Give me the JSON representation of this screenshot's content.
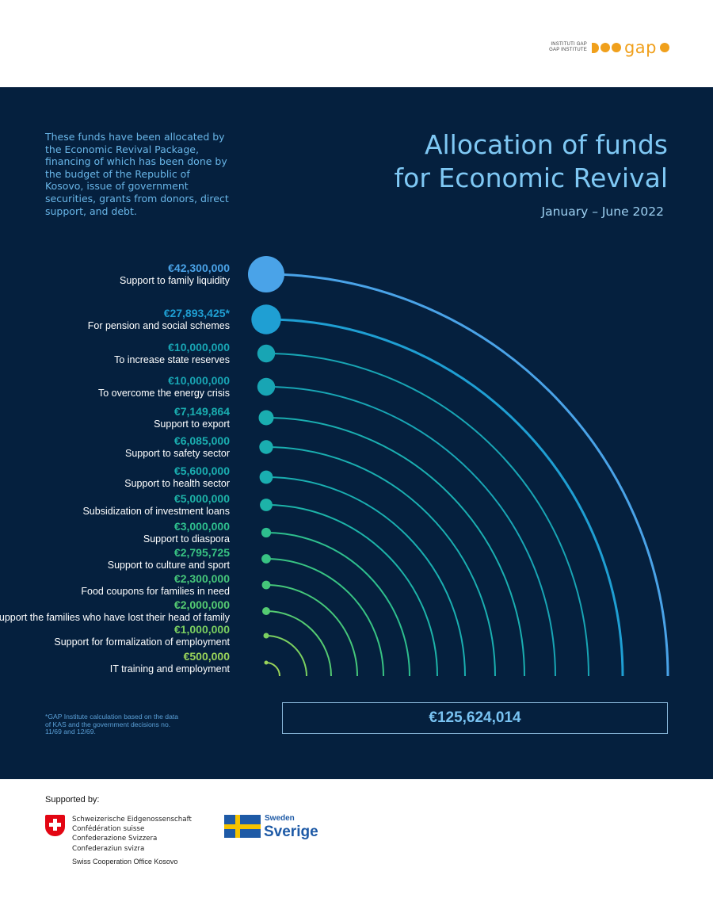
{
  "logo": {
    "line1": "INSTITUTI GAP",
    "line2": "GAP INSTITUTE",
    "wordmark": "gap"
  },
  "intro_text": "These funds have been allocated by the Economic Revival Package, financing of which has been done by the budget of the Republic of Kosovo, issue of government securities, grants from donors, direct support, and debt.",
  "title_line1": "Allocation of funds",
  "title_line2": "for Economic Revival",
  "period": "January – June 2022",
  "footnote": "*GAP Institute calculation based on the data of KAS and the government decisions no. 11/69 and 12/69.",
  "total": "€125,624,014",
  "chart_data": {
    "type": "radial-arc",
    "title": "Allocation of funds for Economic Revival",
    "items": [
      {
        "amount_label": "€42,300,000",
        "value": 42300000,
        "label": "Support to family liquidity",
        "color": "#4aa3e8"
      },
      {
        "amount_label": "€27,893,425*",
        "value": 27893425,
        "label": "For pension and social schemes",
        "color": "#1f9fd3"
      },
      {
        "amount_label": "€10,000,000",
        "value": 10000000,
        "label": "To increase state reserves",
        "color": "#18a5b4"
      },
      {
        "amount_label": "€10,000,000",
        "value": 10000000,
        "label": "To overcome the energy crisis",
        "color": "#18a5b4"
      },
      {
        "amount_label": "€7,149,864",
        "value": 7149864,
        "label": "Support to export",
        "color": "#1aaeb0"
      },
      {
        "amount_label": "€6,085,000",
        "value": 6085000,
        "label": "Support to safety sector",
        "color": "#1aaeb0"
      },
      {
        "amount_label": "€5,600,000",
        "value": 5600000,
        "label": "Support to health sector",
        "color": "#1aaeb0"
      },
      {
        "amount_label": "€5,000,000",
        "value": 5000000,
        "label": "Subsidization of investment loans",
        "color": "#1db3a8"
      },
      {
        "amount_label": "€3,000,000",
        "value": 3000000,
        "label": "Support to diaspora",
        "color": "#2ebf8e"
      },
      {
        "amount_label": "€2,795,725",
        "value": 2795725,
        "label": "Support to culture and sport",
        "color": "#38c383"
      },
      {
        "amount_label": "€2,300,000",
        "value": 2300000,
        "label": "Food coupons for families in need",
        "color": "#45c77a"
      },
      {
        "amount_label": "€2,000,000",
        "value": 2000000,
        "label": "Support the families who have lost their head of family",
        "color": "#55cb72"
      },
      {
        "amount_label": "€1,000,000",
        "value": 1000000,
        "label": "Support for formalization of employment",
        "color": "#7bd060"
      },
      {
        "amount_label": "€500,000",
        "value": 500000,
        "label": "IT training and employment",
        "color": "#9ad45a"
      }
    ],
    "total": 125624014
  },
  "supporters": {
    "heading": "Supported by:",
    "swiss_lines": [
      "Schweizerische Eidgenossenschaft",
      "Confédération suisse",
      "Confederazione Svizzera",
      "Confederaziun svizra"
    ],
    "swiss_office": "Swiss Cooperation Office Kosovo",
    "sweden_small": "Sweden",
    "sweden_big": "Sverige"
  }
}
